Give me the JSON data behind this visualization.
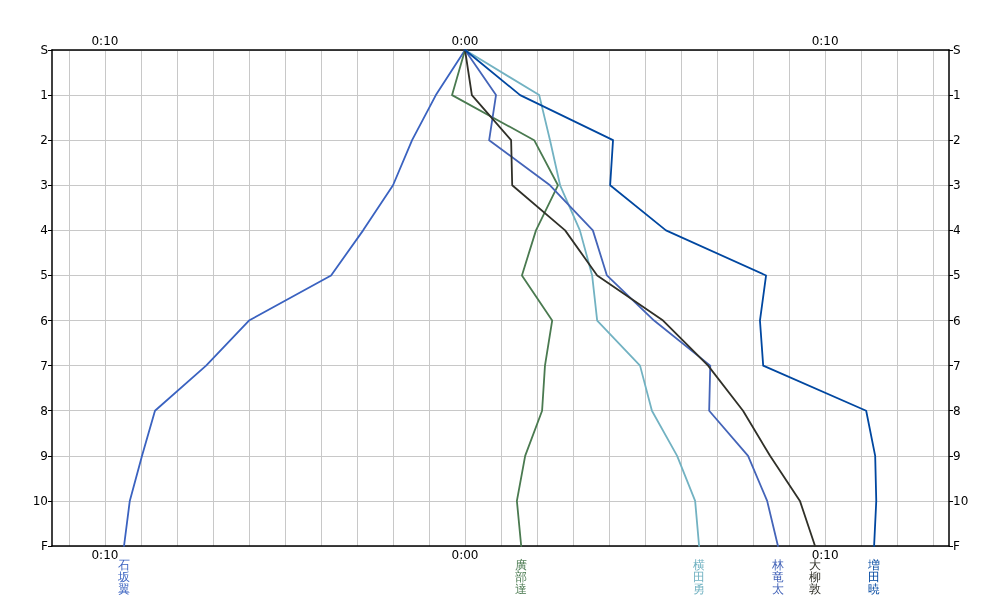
{
  "chart_data": {
    "type": "line",
    "orientation": "horizontal",
    "legend": false,
    "grid": true,
    "marker": "none",
    "line_style": "solid",
    "categories": [
      "S",
      "1",
      "2",
      "3",
      "4",
      "5",
      "6",
      "7",
      "8",
      "9",
      "10",
      "F"
    ],
    "xlim": [
      -11.47,
      13.44
    ],
    "xticks": [
      {
        "value": -11,
        "label": null
      },
      {
        "value": -10,
        "label": "0:10"
      },
      {
        "value": -9,
        "label": null
      },
      {
        "value": -8,
        "label": null
      },
      {
        "value": -7,
        "label": null
      },
      {
        "value": -6,
        "label": null
      },
      {
        "value": -5,
        "label": null
      },
      {
        "value": -4,
        "label": null
      },
      {
        "value": -3,
        "label": null
      },
      {
        "value": -2,
        "label": null
      },
      {
        "value": -1,
        "label": null
      },
      {
        "value": 0,
        "label": "0:00"
      },
      {
        "value": 1,
        "label": null
      },
      {
        "value": 2,
        "label": null
      },
      {
        "value": 3,
        "label": null
      },
      {
        "value": 4,
        "label": null
      },
      {
        "value": 5,
        "label": null
      },
      {
        "value": 6,
        "label": null
      },
      {
        "value": 7,
        "label": null
      },
      {
        "value": 8,
        "label": null
      },
      {
        "value": 9,
        "label": null
      },
      {
        "value": 10,
        "label": "0:10"
      },
      {
        "value": 11,
        "label": null
      },
      {
        "value": 12,
        "label": null
      },
      {
        "value": 13,
        "label": null
      }
    ],
    "x2lim": [
      -11.47,
      13.44
    ],
    "x2ticks": [
      {
        "value": -11,
        "label": null
      },
      {
        "value": -10,
        "label": "0:10"
      },
      {
        "value": -9,
        "label": null
      },
      {
        "value": -8,
        "label": null
      },
      {
        "value": -7,
        "label": null
      },
      {
        "value": -6,
        "label": null
      },
      {
        "value": -5,
        "label": null
      },
      {
        "value": -4,
        "label": null
      },
      {
        "value": -3,
        "label": null
      },
      {
        "value": -2,
        "label": null
      },
      {
        "value": -1,
        "label": null
      },
      {
        "value": 0,
        "label": "0:00"
      },
      {
        "value": 1,
        "label": null
      },
      {
        "value": 2,
        "label": null
      },
      {
        "value": 3,
        "label": null
      },
      {
        "value": 4,
        "label": null
      },
      {
        "value": 5,
        "label": null
      },
      {
        "value": 6,
        "label": null
      },
      {
        "value": 7,
        "label": null
      },
      {
        "value": 8,
        "label": null
      },
      {
        "value": 9,
        "label": null
      },
      {
        "value": 10,
        "label": "0:10"
      },
      {
        "value": 11,
        "label": null
      },
      {
        "value": 12,
        "label": null
      },
      {
        "value": 13,
        "label": null
      }
    ],
    "series": [
      {
        "name": "石坂翼",
        "color": "#3a62c0",
        "values": [
          0,
          -0.81,
          -1.47,
          -2.0,
          -2.83,
          -3.72,
          -6.0,
          -7.19,
          -8.61,
          -8.97,
          -9.31,
          -9.47
        ]
      },
      {
        "name": "廣部達",
        "color": "#4a7a50",
        "values": [
          0,
          -0.36,
          1.92,
          2.58,
          1.97,
          1.58,
          2.42,
          2.22,
          2.14,
          1.67,
          1.44,
          1.56
        ]
      },
      {
        "name": "横田勇",
        "color": "#72b2c2",
        "values": [
          0,
          2.06,
          2.36,
          2.64,
          3.19,
          3.53,
          3.67,
          4.86,
          5.19,
          5.89,
          6.39,
          6.5
        ]
      },
      {
        "name": "林竜太",
        "color": "#4464b8",
        "values": [
          0,
          0.86,
          0.67,
          2.36,
          3.55,
          3.94,
          5.25,
          6.81,
          6.78,
          7.86,
          8.39,
          8.69
        ]
      },
      {
        "name": "大柳敦",
        "color": "#303028",
        "values": [
          0,
          0.19,
          1.28,
          1.31,
          2.78,
          3.67,
          5.5,
          6.75,
          7.72,
          8.47,
          9.3,
          9.72
        ]
      },
      {
        "name": "増田暁",
        "color": "#0047a0",
        "values": [
          0,
          1.53,
          4.11,
          4.03,
          5.58,
          8.36,
          8.19,
          8.28,
          11.14,
          11.39,
          11.42,
          11.36
        ]
      }
    ]
  }
}
